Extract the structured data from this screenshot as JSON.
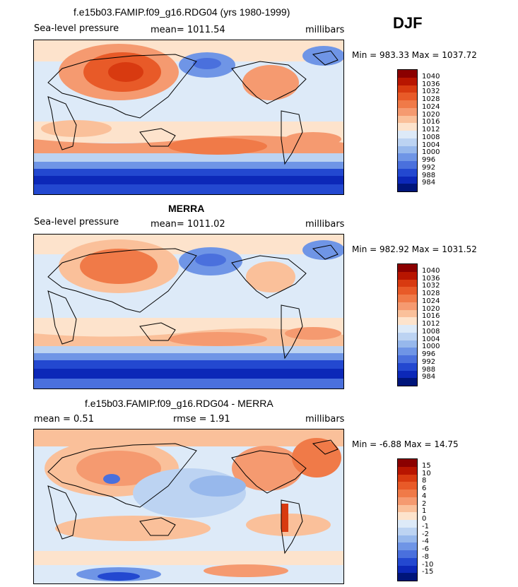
{
  "season": "DJF",
  "panels": [
    {
      "title": "f.e15b03.FAMIP.f09_g16.RDG04 (yrs 1980-1999)",
      "left": "Sea-level pressure",
      "center": "mean= 1011.54",
      "right": "millibars",
      "minmax": "Min = 983.33 Max = 1037.72",
      "colorbar": {
        "levels": [
          "1040",
          "1036",
          "1032",
          "1028",
          "1024",
          "1020",
          "1016",
          "1012",
          "1008",
          "1004",
          "1000",
          "996",
          "992",
          "988",
          "984"
        ],
        "colors": [
          "#8b0000",
          "#b81500",
          "#d83a10",
          "#e85a28",
          "#f07a48",
          "#f59a70",
          "#fac09a",
          "#fde3cc",
          "#ddeaf8",
          "#bcd3f2",
          "#97b8ec",
          "#6f95e6",
          "#4a70dd",
          "#2348d0",
          "#0c28b8",
          "#00157a"
        ]
      }
    },
    {
      "title": "MERRA",
      "left": "Sea-level pressure",
      "center": "mean= 1011.02",
      "right": "millibars",
      "minmax": "Min = 982.92 Max = 1031.52",
      "colorbar": {
        "levels": [
          "1040",
          "1036",
          "1032",
          "1028",
          "1024",
          "1020",
          "1016",
          "1012",
          "1008",
          "1004",
          "1000",
          "996",
          "992",
          "988",
          "984"
        ],
        "colors": [
          "#8b0000",
          "#b81500",
          "#d83a10",
          "#e85a28",
          "#f07a48",
          "#f59a70",
          "#fac09a",
          "#fde3cc",
          "#ddeaf8",
          "#bcd3f2",
          "#97b8ec",
          "#6f95e6",
          "#4a70dd",
          "#2348d0",
          "#0c28b8",
          "#00157a"
        ]
      }
    },
    {
      "title": "f.e15b03.FAMIP.f09_g16.RDG04 - MERRA",
      "left": "mean =    0.51",
      "center": "rmse =    1.91",
      "right": "millibars",
      "minmax": "Min =  -6.88 Max =  14.75",
      "colorbar": {
        "levels": [
          "15",
          "10",
          "8",
          "6",
          "4",
          "2",
          "1",
          "0",
          "-1",
          "-2",
          "-4",
          "-6",
          "-8",
          "-10",
          "-15"
        ],
        "colors": [
          "#8b0000",
          "#b81500",
          "#d83a10",
          "#e85a28",
          "#f07a48",
          "#f59a70",
          "#fac09a",
          "#fde3cc",
          "#ddeaf8",
          "#bcd3f2",
          "#97b8ec",
          "#6f95e6",
          "#4a70dd",
          "#2348d0",
          "#0c28b8",
          "#00157a"
        ]
      }
    }
  ],
  "chart_data": [
    {
      "type": "heatmap",
      "title": "f.e15b03.FAMIP.f09_g16.RDG04 (yrs 1980-1999)",
      "variable": "Sea-level pressure",
      "units": "millibars",
      "mean": 1011.54,
      "min": 983.33,
      "max": 1037.72,
      "contour_levels": [
        984,
        988,
        992,
        996,
        1000,
        1004,
        1008,
        1012,
        1016,
        1020,
        1024,
        1028,
        1032,
        1036,
        1040
      ]
    },
    {
      "type": "heatmap",
      "title": "MERRA",
      "variable": "Sea-level pressure",
      "units": "millibars",
      "mean": 1011.02,
      "min": 982.92,
      "max": 1031.52,
      "contour_levels": [
        984,
        988,
        992,
        996,
        1000,
        1004,
        1008,
        1012,
        1016,
        1020,
        1024,
        1028,
        1032,
        1036,
        1040
      ]
    },
    {
      "type": "heatmap",
      "title": "f.e15b03.FAMIP.f09_g16.RDG04 - MERRA",
      "units": "millibars",
      "mean": 0.51,
      "rmse": 1.91,
      "min": -6.88,
      "max": 14.75,
      "contour_levels": [
        -15,
        -10,
        -8,
        -6,
        -4,
        -2,
        -1,
        0,
        1,
        2,
        4,
        6,
        8,
        10,
        15
      ]
    }
  ]
}
